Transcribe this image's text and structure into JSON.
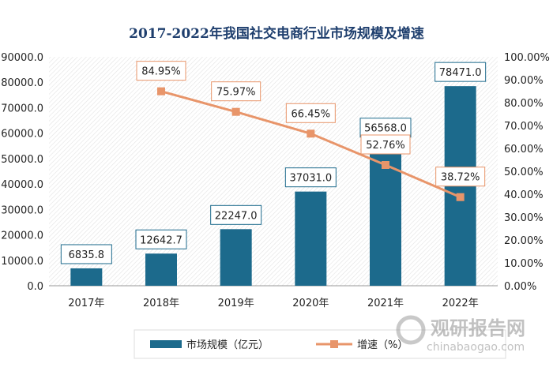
{
  "chart_data": {
    "type": "bar",
    "title": "2017-2022年我国社交电商行业市场规模及增速",
    "categories": [
      "2017年",
      "2018年",
      "2019年",
      "2020年",
      "2021年",
      "2022年"
    ],
    "series": [
      {
        "name": "市场规模（亿元）",
        "type": "bar",
        "axis": "left",
        "color": "#1c6a8c",
        "values": [
          6835.8,
          12642.7,
          22247.0,
          37031.0,
          56568.0,
          78471.0
        ],
        "labels": [
          "6835.8",
          "12642.7",
          "22247.0",
          "37031.0",
          "56568.0",
          "78471.0"
        ]
      },
      {
        "name": "增速（%）",
        "type": "line",
        "axis": "right",
        "color": "#e8956a",
        "x": [
          "2018年",
          "2019年",
          "2020年",
          "2021年",
          "2022年"
        ],
        "values": [
          84.95,
          75.97,
          66.45,
          52.76,
          38.72
        ],
        "labels": [
          "84.95%",
          "75.97%",
          "66.45%",
          "52.76%",
          "38.72%"
        ]
      }
    ],
    "y_left": {
      "range": [
        0,
        90000
      ],
      "ticks": [
        "0.0",
        "10000.0",
        "20000.0",
        "30000.0",
        "40000.0",
        "50000.0",
        "60000.0",
        "70000.0",
        "80000.0",
        "90000.0"
      ]
    },
    "y_right": {
      "range": [
        0,
        100
      ],
      "ticks": [
        "0.00%",
        "10.00%",
        "20.00%",
        "30.00%",
        "40.00%",
        "50.00%",
        "60.00%",
        "70.00%",
        "80.00%",
        "90.00%",
        "100.00%"
      ]
    },
    "grid": false,
    "legend": "bottom"
  },
  "watermark": {
    "cn": "观研报告网",
    "en": "chinabaogao.com"
  }
}
